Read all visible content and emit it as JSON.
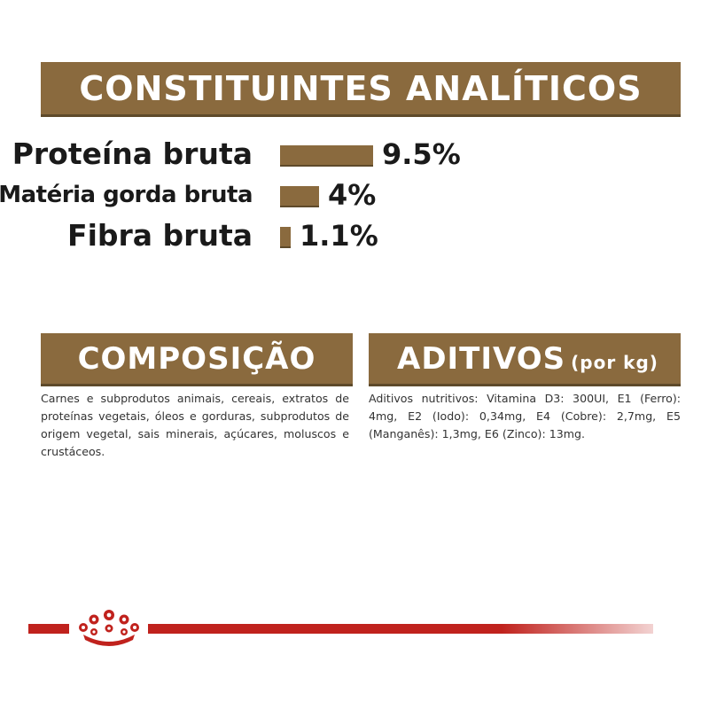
{
  "constituintes": {
    "title": "CONSTITUINTES ANALÍTICOS",
    "items": [
      {
        "label": "Proteína bruta",
        "value_text": "9.5%",
        "value": 9.5
      },
      {
        "label": "Matéria gorda bruta",
        "value_text": "4%",
        "value": 4
      },
      {
        "label": "Fibra bruta",
        "value_text": "1.1%",
        "value": 1.1
      }
    ]
  },
  "composicao": {
    "title": "COMPOSIÇÃO",
    "text": "Carnes e subprodutos animais, cereais, extratos de proteínas vegetais, óleos e gorduras, subprodutos de origem vegetal, sais minerais, açúcares, moluscos e crustáceos."
  },
  "aditivos": {
    "title": "ADITIVOS",
    "unit": "(por kg)",
    "text": "Aditivos nutritivos: Vitamina D3: 300UI, E1 (Ferro): 4mg, E2 (Iodo): 0,34mg, E4 (Cobre): 2,7mg, E5 (Manganês): 1,3mg, E6 (Zinco): 13mg."
  },
  "colors": {
    "brand_brown": "#8a6a3e",
    "brand_red": "#c0221d"
  },
  "footer": {
    "logo_icon": "royal-crown-icon"
  }
}
